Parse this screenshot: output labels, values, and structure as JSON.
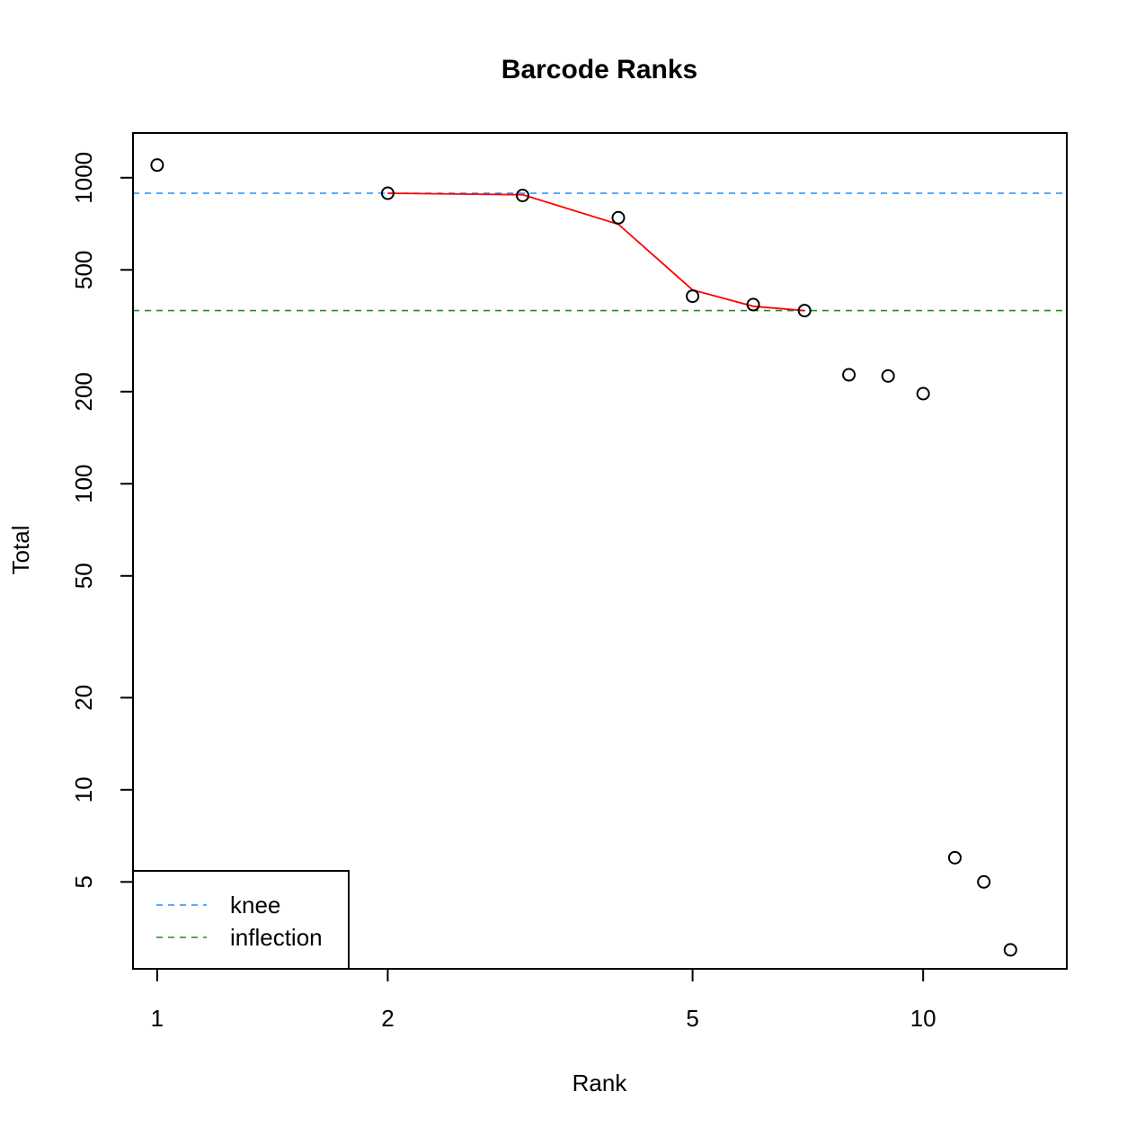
{
  "chart_data": {
    "type": "scatter",
    "title": "Barcode Ranks",
    "xlabel": "Rank",
    "ylabel": "Total",
    "x_scale": "log",
    "y_scale": "log",
    "xlim": [
      0.93,
      15.4
    ],
    "ylim": [
      2.6,
      1400
    ],
    "x_ticks": [
      1,
      2,
      5,
      10
    ],
    "y_ticks": [
      5,
      10,
      20,
      50,
      100,
      200,
      500,
      1000
    ],
    "grid": false,
    "points": {
      "name": "",
      "x": [
        1,
        2,
        3,
        4,
        5,
        6,
        7,
        8,
        9,
        10,
        11,
        12,
        13
      ],
      "y": [
        1100,
        890,
        875,
        740,
        410,
        385,
        368,
        227,
        225,
        197,
        6,
        5,
        3
      ]
    },
    "fitted_curve": {
      "color": "#ff0000",
      "x": [
        2,
        3,
        4,
        5,
        6,
        7
      ],
      "y": [
        890,
        880,
        705,
        430,
        380,
        368
      ]
    },
    "reference_lines": [
      {
        "name": "knee",
        "orientation": "horizontal",
        "value": 890,
        "color": "#1e90ff",
        "style": "dashed"
      },
      {
        "name": "inflection",
        "orientation": "horizontal",
        "value": 368,
        "color": "#228b22",
        "style": "dashed"
      }
    ],
    "legend": {
      "placement": "bottom-left",
      "entries": [
        {
          "label": "knee",
          "color": "#1e90ff",
          "style": "dashed"
        },
        {
          "label": "inflection",
          "color": "#228b22",
          "style": "dashed"
        }
      ]
    }
  }
}
